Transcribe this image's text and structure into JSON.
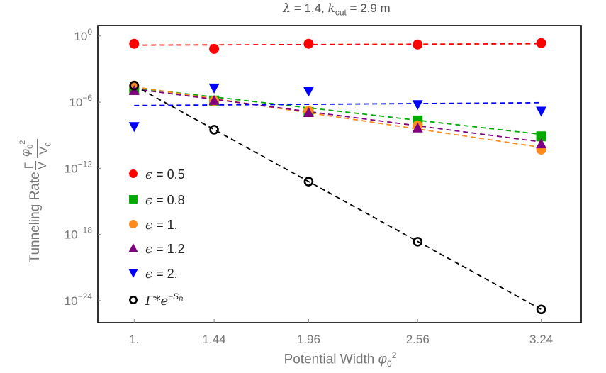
{
  "title": {
    "lambda": "λ",
    "part1": " = 1.4, ",
    "k": "k",
    "cut": "cut",
    "part2": " = 2.9 m"
  },
  "xlabel": {
    "text": "Potential Width ",
    "phi": "φ",
    "sub": "0",
    "sup": "2"
  },
  "ylabel": {
    "text": "Tunneling Rate ",
    "num1": "Γ",
    "den1": "V",
    "num2": "φ",
    "num2_sub": "0",
    "num2_sup": "2",
    "den2": "V",
    "den2_sub": "0"
  },
  "chart_data": {
    "type": "scatter",
    "x_scale": "linear",
    "y_scale": "log",
    "xlim": [
      0.8,
      3.46
    ],
    "ylim": [
      1e-26,
      9
    ],
    "x": [
      1.0,
      1.44,
      1.96,
      2.56,
      3.24
    ],
    "xticks": [
      {
        "value": 1.0,
        "label": "1."
      },
      {
        "value": 1.44,
        "label": "1.44"
      },
      {
        "value": 1.96,
        "label": "1.96"
      },
      {
        "value": 2.56,
        "label": "2.56"
      },
      {
        "value": 3.24,
        "label": "3.24"
      }
    ],
    "yticks": [
      {
        "value": 1,
        "base": "10",
        "exp": "0"
      },
      {
        "value": 1e-06,
        "base": "10",
        "exp": "−6"
      },
      {
        "value": 1e-12,
        "base": "10",
        "exp": "−12"
      },
      {
        "value": 1e-18,
        "base": "10",
        "exp": "−18"
      },
      {
        "value": 1e-24,
        "base": "10",
        "exp": "−24"
      }
    ],
    "grid": false,
    "legend_position": "bottom-left",
    "series": [
      {
        "name": "ϵ = 0.5",
        "symbol": "ϵ",
        "value_label": " = 0.5",
        "marker": "circle",
        "color": "#ff0000",
        "values": [
          0.2,
          0.069,
          0.2,
          0.17,
          0.23
        ],
        "fit": [
          0.15,
          0.2
        ]
      },
      {
        "name": "ϵ = 0.8",
        "symbol": "ϵ",
        "value_label": " = 0.8",
        "marker": "square",
        "color": "#00a800",
        "values": [
          1.3e-05,
          1.4e-06,
          1.3e-07,
          2.2e-08,
          8e-10
        ],
        "fit": [
          2e-05,
          1.2e-09
        ]
      },
      {
        "name": "ϵ = 1.",
        "symbol": "ϵ",
        "value_label": " = 1.",
        "marker": "circle",
        "color": "#ff8c1a",
        "values": [
          3.2e-05,
          1.3e-06,
          1.6e-07,
          8e-09,
          5e-11
        ],
        "fit": [
          2.5e-05,
          8e-11
        ]
      },
      {
        "name": "ϵ = 1.2",
        "symbol": "ϵ",
        "value_label": " = 1.2",
        "marker": "triangle-up",
        "color": "#800080",
        "values": [
          1.1e-05,
          1.4e-06,
          1.1e-07,
          4.4e-09,
          1.6e-10
        ],
        "fit": [
          1.6e-05,
          2.5e-10
        ]
      },
      {
        "name": "ϵ = 2.",
        "symbol": "ϵ",
        "value_label": " = 2.",
        "marker": "triangle-down",
        "color": "#0000ff",
        "values": [
          6.3e-09,
          2e-05,
          1e-05,
          6.3e-07,
          1.6e-07
        ],
        "fit": [
          5e-07,
          9e-07
        ]
      },
      {
        "name": "Γ*e^−S_B",
        "symbol": "Γ*e",
        "value_label": "−S",
        "value_sub": "B",
        "marker": "open-circle",
        "color": "#000000",
        "values": [
          3.2e-05,
          3.2e-09,
          6.3e-14,
          2.2e-19,
          1.6e-25
        ],
        "fit": [
          3.2e-05,
          1.6e-25
        ]
      }
    ]
  }
}
